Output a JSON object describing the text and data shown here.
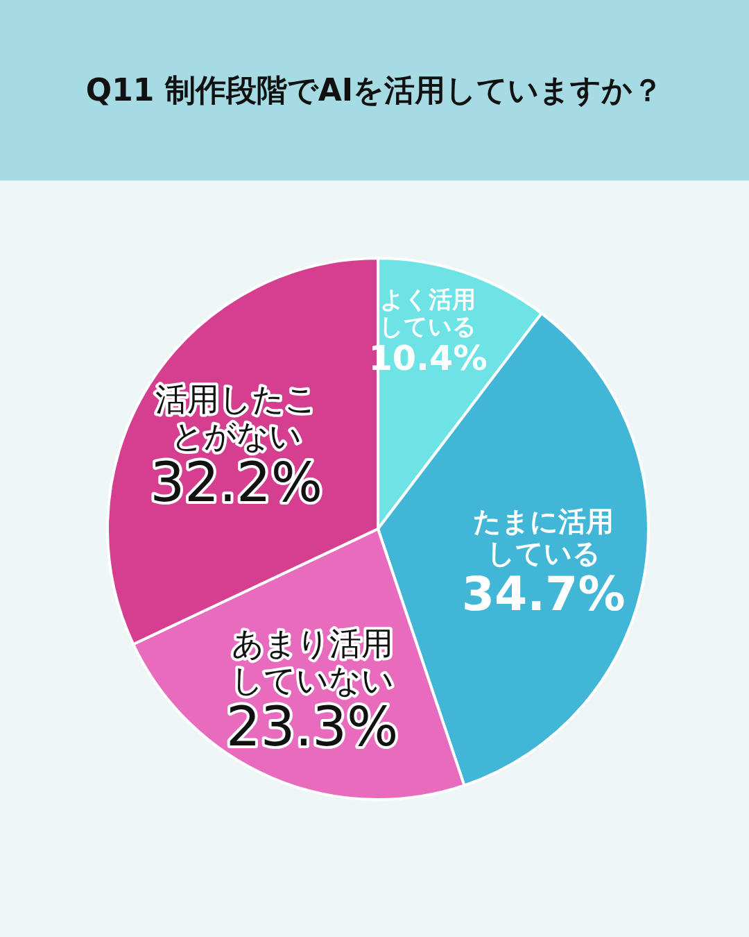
{
  "chart_data": {
    "type": "pie",
    "title": "Q11 制作段階でAIを活用していますか？",
    "categories": [
      "よく活用している",
      "たまに活用している",
      "あまり活用していない",
      "活用したことがない"
    ],
    "values": [
      10.4,
      34.7,
      23.3,
      32.2
    ],
    "colors": [
      "#6de3e6",
      "#42b6d6",
      "#e86bbd",
      "#d63f8f"
    ],
    "value_labels": [
      "10.4%",
      "34.7%",
      "23.3%",
      "32.2%"
    ]
  }
}
